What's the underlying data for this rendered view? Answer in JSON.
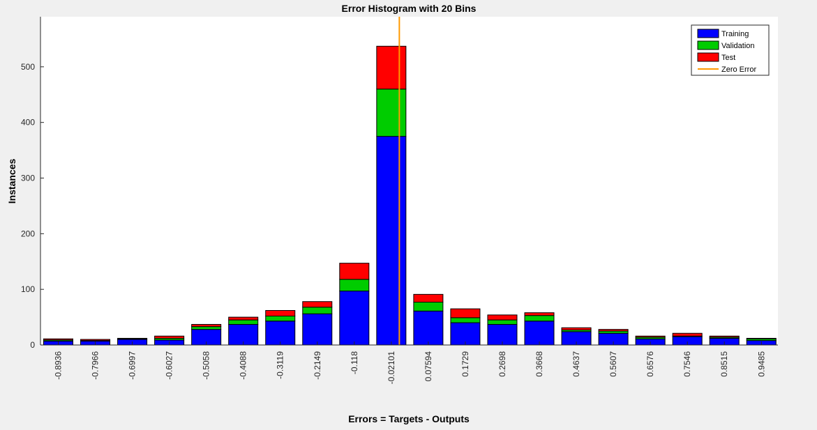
{
  "figure": {
    "background": "#f0f0f0",
    "axes_background": "#ffffff"
  },
  "chart_data": {
    "type": "bar",
    "stacked": true,
    "title": "Error Histogram with 20 Bins",
    "xlabel": "Errors = Targets - Outputs",
    "ylabel": "Instances",
    "categories": [
      "-0.8936",
      "-0.7966",
      "-0.6997",
      "-0.6027",
      "-0.5058",
      "-0.4088",
      "-0.3119",
      "-0.2149",
      "-0.118",
      "-0.02101",
      "0.07594",
      "0.1729",
      "0.2698",
      "0.3668",
      "0.4637",
      "0.5607",
      "0.6576",
      "0.7546",
      "0.8515",
      "0.9485"
    ],
    "series": [
      {
        "name": "Training",
        "color": "#0000ff",
        "values": [
          7,
          7,
          10,
          9,
          28,
          37,
          43,
          56,
          97,
          375,
          61,
          40,
          37,
          43,
          24,
          21,
          11,
          15,
          12,
          8
        ]
      },
      {
        "name": "Validation",
        "color": "#00cc00",
        "values": [
          2,
          1,
          1,
          3,
          5,
          8,
          9,
          12,
          21,
          85,
          16,
          9,
          8,
          10,
          3,
          4,
          3,
          1,
          2,
          3
        ]
      },
      {
        "name": "Test",
        "color": "#ff0000",
        "values": [
          2,
          2,
          1,
          4,
          4,
          5,
          10,
          10,
          29,
          77,
          14,
          16,
          9,
          5,
          4,
          3,
          2,
          5,
          2,
          1
        ]
      }
    ],
    "zero_error": {
      "name": "Zero Error",
      "color": "#ff9900",
      "x_position": 0
    },
    "yticks": [
      0,
      100,
      200,
      300,
      400,
      500
    ],
    "ylim": [
      0,
      590
    ],
    "grid": false,
    "legend_position": "top-right"
  }
}
